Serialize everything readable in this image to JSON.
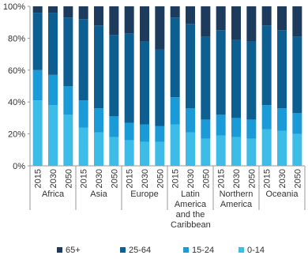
{
  "chart_data": {
    "type": "stacked_bar_100",
    "categories": [
      "2015",
      "2030",
      "2050",
      "2015",
      "2030",
      "2050",
      "2015",
      "2030",
      "2050",
      "2015",
      "2030",
      "2050",
      "2015",
      "2030",
      "2050",
      "2015",
      "2030",
      "2050"
    ],
    "groups": [
      "Africa",
      "Asia",
      "Europe",
      "Latin America and the Caribbean",
      "Northern America",
      "Oceania"
    ],
    "series": [
      {
        "name": "0-14",
        "color": "#3cbce6",
        "values": [
          41,
          38,
          32,
          24,
          21,
          18,
          16,
          15,
          15,
          26,
          21,
          17,
          19,
          18,
          17,
          23,
          22,
          20
        ]
      },
      {
        "name": "15-24",
        "color": "#1b9ad8",
        "values": [
          19,
          19,
          18,
          17,
          15,
          13,
          11,
          11,
          10,
          17,
          15,
          12,
          13,
          12,
          12,
          15,
          14,
          13
        ]
      },
      {
        "name": "25-64",
        "color": "#0d5f91",
        "values": [
          36,
          39,
          43,
          51,
          52,
          51,
          56,
          52,
          48,
          50,
          53,
          52,
          53,
          49,
          49,
          50,
          49,
          48
        ]
      },
      {
        "name": "65+",
        "color": "#1d3b5c",
        "values": [
          4,
          4,
          7,
          8,
          12,
          18,
          17,
          22,
          27,
          7,
          11,
          19,
          15,
          21,
          22,
          12,
          15,
          19
        ]
      }
    ],
    "ylim": [
      0,
      100
    ],
    "yticks": [
      {
        "value": 0,
        "label": "0%"
      },
      {
        "value": 20,
        "label": "20%"
      },
      {
        "value": 40,
        "label": "40%"
      },
      {
        "value": 60,
        "label": "60%"
      },
      {
        "value": 80,
        "label": "80%"
      },
      {
        "value": 100,
        "label": "100%"
      }
    ],
    "grid": false
  }
}
